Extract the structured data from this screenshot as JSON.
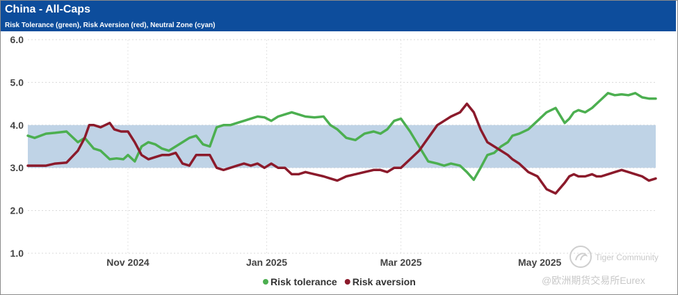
{
  "header": {
    "title": "China - All-Caps",
    "subtitle": "Risk Tolerance (green), Risk Aversion (red), Neutral Zone (cyan)"
  },
  "watermark": {
    "line1": "Tiger Community",
    "line2": "@欧洲期货交易所Eurex"
  },
  "colors": {
    "header_bg": "#0d4d9c",
    "tolerance": "#4caf50",
    "aversion": "#8b1a2b",
    "neutral_zone": "#bfd3e6"
  },
  "chart_data": {
    "type": "line",
    "title": "China - All-Caps",
    "subtitle": "Risk Tolerance (green), Risk Aversion (red), Neutral Zone (cyan)",
    "x_unit": "days since 2024-09-18",
    "xlim": [
      0,
      276
    ],
    "ylim": [
      1.0,
      6.0
    ],
    "yticks": [
      1.0,
      2.0,
      3.0,
      4.0,
      5.0,
      6.0
    ],
    "ytick_labels": [
      "1.0",
      "2.0",
      "3.0",
      "4.0",
      "5.0",
      "6.0"
    ],
    "xticks": [
      44,
      105,
      164,
      225
    ],
    "xtick_labels": [
      "Nov 2024",
      "Jan 2025",
      "Mar 2025",
      "May 2025"
    ],
    "grid": true,
    "neutral_zone": [
      3.0,
      4.0
    ],
    "legend_position": "bottom-center",
    "series": [
      {
        "name": "Risk tolerance",
        "color": "#4caf50",
        "x": [
          0,
          3,
          8,
          12,
          17,
          22,
          25,
          29,
          32,
          36,
          39,
          42,
          44,
          47,
          50,
          53,
          56,
          59,
          62,
          65,
          68,
          71,
          74,
          77,
          80,
          83,
          86,
          89,
          92,
          95,
          98,
          101,
          104,
          107,
          110,
          113,
          116,
          119,
          122,
          126,
          130,
          133,
          136,
          140,
          144,
          148,
          152,
          155,
          158,
          161,
          164,
          168,
          172,
          176,
          180,
          183,
          186,
          190,
          193,
          196,
          199,
          202,
          205,
          208,
          211,
          213,
          216,
          220,
          224,
          228,
          232,
          236,
          238,
          240,
          242,
          245,
          248,
          250,
          252,
          255,
          258,
          261,
          264,
          267,
          270,
          273,
          276
        ],
        "values": [
          3.75,
          3.7,
          3.8,
          3.82,
          3.85,
          3.6,
          3.7,
          3.45,
          3.4,
          3.2,
          3.22,
          3.2,
          3.3,
          3.15,
          3.5,
          3.6,
          3.55,
          3.45,
          3.4,
          3.5,
          3.6,
          3.7,
          3.75,
          3.55,
          3.5,
          3.95,
          4.0,
          4.0,
          4.05,
          4.1,
          4.15,
          4.2,
          4.18,
          4.1,
          4.2,
          4.25,
          4.3,
          4.25,
          4.2,
          4.18,
          4.2,
          4.0,
          3.9,
          3.7,
          3.65,
          3.8,
          3.85,
          3.8,
          3.9,
          4.1,
          4.15,
          3.85,
          3.5,
          3.15,
          3.1,
          3.05,
          3.1,
          3.05,
          2.9,
          2.72,
          3.0,
          3.3,
          3.35,
          3.5,
          3.6,
          3.75,
          3.8,
          3.9,
          4.1,
          4.3,
          4.4,
          4.05,
          4.15,
          4.3,
          4.35,
          4.3,
          4.4,
          4.5,
          4.6,
          4.75,
          4.7,
          4.72,
          4.7,
          4.75,
          4.65,
          4.62,
          4.62
        ]
      },
      {
        "name": "Risk aversion",
        "color": "#8b1a2b",
        "x": [
          0,
          3,
          8,
          12,
          17,
          22,
          25,
          27,
          29,
          32,
          36,
          38,
          41,
          44,
          47,
          50,
          53,
          56,
          59,
          62,
          65,
          68,
          71,
          74,
          77,
          80,
          83,
          86,
          89,
          92,
          95,
          98,
          101,
          104,
          107,
          110,
          113,
          116,
          119,
          122,
          126,
          130,
          133,
          136,
          140,
          144,
          148,
          152,
          155,
          158,
          161,
          164,
          168,
          172,
          176,
          180,
          183,
          186,
          190,
          193,
          196,
          199,
          202,
          205,
          208,
          211,
          213,
          216,
          220,
          224,
          228,
          232,
          236,
          238,
          240,
          242,
          245,
          248,
          250,
          252,
          255,
          258,
          261,
          264,
          267,
          270,
          273,
          276
        ],
        "values": [
          3.05,
          3.05,
          3.05,
          3.1,
          3.12,
          3.4,
          3.7,
          4.0,
          4.0,
          3.95,
          4.05,
          3.9,
          3.85,
          3.85,
          3.6,
          3.3,
          3.2,
          3.25,
          3.3,
          3.3,
          3.35,
          3.1,
          3.05,
          3.3,
          3.3,
          3.3,
          3.0,
          2.95,
          3.0,
          3.05,
          3.1,
          3.05,
          3.1,
          3.0,
          3.1,
          3.0,
          3.0,
          2.85,
          2.85,
          2.9,
          2.85,
          2.8,
          2.75,
          2.7,
          2.8,
          2.85,
          2.9,
          2.95,
          2.95,
          2.9,
          3.0,
          3.0,
          3.2,
          3.4,
          3.7,
          4.0,
          4.1,
          4.2,
          4.3,
          4.5,
          4.3,
          3.9,
          3.6,
          3.5,
          3.4,
          3.3,
          3.2,
          3.1,
          2.9,
          2.8,
          2.5,
          2.4,
          2.65,
          2.8,
          2.85,
          2.8,
          2.8,
          2.85,
          2.8,
          2.8,
          2.85,
          2.9,
          2.95,
          2.9,
          2.85,
          2.8,
          2.7,
          2.75
        ]
      }
    ]
  }
}
